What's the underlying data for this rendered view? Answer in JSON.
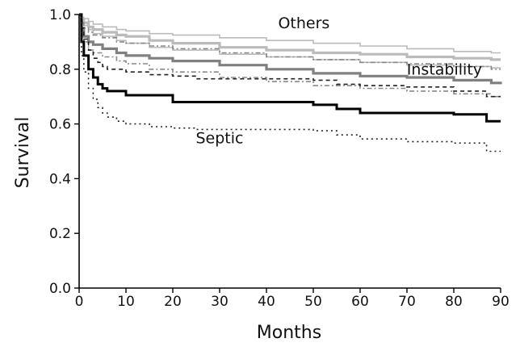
{
  "chart_data": {
    "type": "line",
    "xlabel": "Months",
    "ylabel": "Survival",
    "xlim": [
      0,
      90
    ],
    "ylim": [
      0,
      1
    ],
    "xticks": [
      "0",
      "10",
      "20",
      "30",
      "40",
      "50",
      "60",
      "70",
      "80",
      "90"
    ],
    "yticks": [
      "0.0",
      "0.2",
      "0.4",
      "0.6",
      "0.8",
      "1.0"
    ],
    "grid": false,
    "legend": "none",
    "annotations": [
      {
        "text": "Others",
        "x": 48,
        "y": 0.95
      },
      {
        "text": "Instability",
        "x": 78,
        "y": 0.78
      },
      {
        "text": "Septic",
        "x": 30,
        "y": 0.53
      }
    ],
    "series": [
      {
        "group": "Others",
        "role": "upper-ci",
        "color": "#bbbbbb",
        "dash": "none",
        "x": [
          0,
          0.5,
          1,
          2,
          3,
          5,
          8,
          10,
          15,
          20,
          30,
          40,
          50,
          60,
          70,
          80,
          88,
          90
        ],
        "y": [
          1.0,
          0.99,
          0.985,
          0.975,
          0.965,
          0.955,
          0.945,
          0.94,
          0.93,
          0.925,
          0.915,
          0.905,
          0.895,
          0.885,
          0.875,
          0.865,
          0.86,
          0.86
        ]
      },
      {
        "group": "Others",
        "role": "estimate",
        "color": "#bbbbbb",
        "dash": "none",
        "x": [
          0,
          0.5,
          1,
          2,
          3,
          5,
          8,
          10,
          15,
          20,
          30,
          40,
          50,
          60,
          70,
          80,
          88,
          90
        ],
        "y": [
          1.0,
          0.98,
          0.97,
          0.955,
          0.945,
          0.935,
          0.925,
          0.92,
          0.905,
          0.895,
          0.88,
          0.87,
          0.86,
          0.855,
          0.845,
          0.84,
          0.835,
          0.835
        ]
      },
      {
        "group": "Others",
        "role": "lower-ci",
        "color": "#bbbbbb",
        "dash": "none",
        "x": [
          0,
          0.5,
          1,
          2,
          3,
          5,
          8,
          10,
          15,
          20,
          30,
          40,
          50,
          60,
          70,
          80,
          88,
          90
        ],
        "y": [
          1.0,
          0.975,
          0.96,
          0.945,
          0.93,
          0.92,
          0.905,
          0.895,
          0.88,
          0.87,
          0.855,
          0.845,
          0.835,
          0.825,
          0.815,
          0.81,
          0.805,
          0.805
        ]
      },
      {
        "group": "Instability",
        "role": "upper-ci",
        "color": "#888888",
        "dash": "6,3,2,3",
        "x": [
          0,
          0.5,
          1,
          2,
          3,
          5,
          8,
          10,
          15,
          20,
          30,
          40,
          50,
          60,
          70,
          80,
          88,
          90
        ],
        "y": [
          1.0,
          0.97,
          0.95,
          0.935,
          0.925,
          0.915,
          0.9,
          0.895,
          0.885,
          0.875,
          0.86,
          0.845,
          0.835,
          0.825,
          0.82,
          0.81,
          0.8,
          0.8
        ]
      },
      {
        "group": "Instability",
        "role": "estimate",
        "color": "#808080",
        "dash": "none",
        "x": [
          0,
          0.5,
          1,
          2,
          3,
          5,
          8,
          10,
          15,
          20,
          30,
          40,
          50,
          60,
          70,
          80,
          88,
          90
        ],
        "y": [
          1.0,
          0.95,
          0.92,
          0.9,
          0.89,
          0.875,
          0.86,
          0.85,
          0.84,
          0.83,
          0.815,
          0.8,
          0.785,
          0.775,
          0.77,
          0.76,
          0.75,
          0.745
        ]
      },
      {
        "group": "Instability",
        "role": "lower-ci",
        "color": "#888888",
        "dash": "6,3,2,3",
        "x": [
          0,
          0.5,
          1,
          2,
          3,
          5,
          8,
          10,
          15,
          20,
          30,
          40,
          50,
          60,
          70,
          80,
          88,
          90
        ],
        "y": [
          1.0,
          0.93,
          0.9,
          0.87,
          0.86,
          0.845,
          0.83,
          0.82,
          0.8,
          0.79,
          0.77,
          0.755,
          0.74,
          0.73,
          0.72,
          0.71,
          0.7,
          0.7
        ]
      },
      {
        "group": "Septic",
        "role": "upper-ci",
        "color": "#222222",
        "dash": "5,4",
        "x": [
          0,
          0.5,
          1,
          2,
          3,
          4,
          5,
          6,
          8,
          10,
          15,
          20,
          25,
          30,
          40,
          50,
          55,
          60,
          70,
          80,
          87,
          90
        ],
        "y": [
          1.0,
          0.95,
          0.91,
          0.87,
          0.84,
          0.825,
          0.81,
          0.8,
          0.8,
          0.79,
          0.78,
          0.775,
          0.765,
          0.765,
          0.765,
          0.76,
          0.745,
          0.74,
          0.735,
          0.72,
          0.7,
          0.7
        ]
      },
      {
        "group": "Septic",
        "role": "estimate",
        "color": "#000000",
        "dash": "none",
        "x": [
          0,
          0.5,
          1,
          2,
          3,
          4,
          5,
          6,
          8,
          10,
          15,
          20,
          25,
          30,
          40,
          50,
          55,
          60,
          70,
          80,
          87,
          90
        ],
        "y": [
          1.0,
          0.9,
          0.85,
          0.8,
          0.77,
          0.745,
          0.73,
          0.72,
          0.72,
          0.705,
          0.705,
          0.68,
          0.68,
          0.68,
          0.68,
          0.67,
          0.655,
          0.64,
          0.64,
          0.635,
          0.61,
          0.61
        ]
      },
      {
        "group": "Septic",
        "role": "lower-ci",
        "color": "#222222",
        "dash": "2,4",
        "x": [
          0,
          0.5,
          1,
          2,
          3,
          4,
          5,
          6,
          8,
          10,
          15,
          20,
          25,
          30,
          40,
          50,
          55,
          60,
          70,
          80,
          87,
          90
        ],
        "y": [
          1.0,
          0.85,
          0.79,
          0.73,
          0.69,
          0.66,
          0.64,
          0.625,
          0.61,
          0.6,
          0.59,
          0.585,
          0.58,
          0.58,
          0.58,
          0.575,
          0.56,
          0.545,
          0.535,
          0.53,
          0.5,
          0.5
        ]
      }
    ]
  }
}
